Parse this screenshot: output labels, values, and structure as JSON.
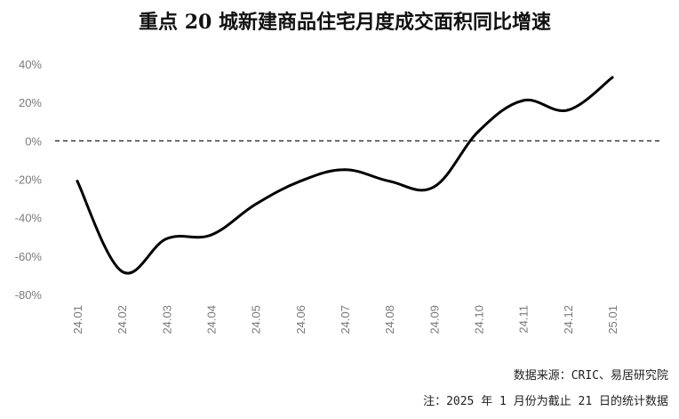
{
  "chart_data": {
    "type": "line",
    "title": "重点 20 城新建商品住宅月度成交面积同比增速",
    "categories": [
      "24.01",
      "24.02",
      "24.03",
      "24.04",
      "24.05",
      "24.06",
      "24.07",
      "24.08",
      "24.09",
      "24.10",
      "24.11",
      "24.12",
      "25.01"
    ],
    "series": [
      {
        "values": [
          -21,
          -68,
          -51,
          -49,
          -33,
          -21,
          -15,
          -21,
          -24,
          5,
          21,
          16,
          33
        ]
      }
    ],
    "y_ticks": [
      "40%",
      "20%",
      "0%",
      "-20%",
      "-40%",
      "-60%",
      "-80%"
    ],
    "ylim": [
      -80,
      40
    ],
    "zero_line": "dashed",
    "grid": false,
    "line_color": "#000000",
    "source": "数据来源：CRIC、易居研究院",
    "footnote": "注：2025 年 1 月份为截止 21 日的统计数据"
  }
}
